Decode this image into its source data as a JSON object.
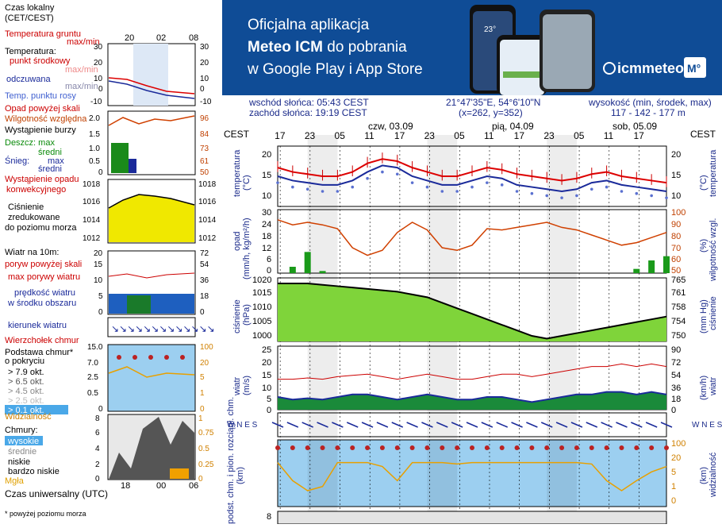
{
  "banner": {
    "line1": "Oficjalna aplikacja",
    "line2a": "Meteo ICM",
    "line2b": " do pobrania",
    "line3": "w Google Play i App Store",
    "logo": "icmmeteo",
    "logo_badge": "M°",
    "phone_time": "23°"
  },
  "meta": {
    "sunrise": "wschód słońca: 05:43 CEST",
    "sunset": "zachód słońca: 19:19 CEST",
    "coords": "21°47'35\"E, 54°6'10\"N",
    "grid": "(x=262,  y=352)",
    "height_label": "wysokość (min, środek, max)",
    "height_values": "117 - 142 - 177 m"
  },
  "legend": {
    "tz_local": "Czas lokalny",
    "tz_local2": "(CET/CEST)",
    "local_ticks": [
      "20",
      "02",
      "08"
    ],
    "ground_temp": "Temperatura gruntu",
    "ground_temp2": "max/min",
    "temperature": "Temperatura:",
    "mid_point": "punkt środkowy",
    "maxmin1": "max/min",
    "felt": "odczuwana",
    "maxmin2": "max/min",
    "dew": "Temp. punktu rosy",
    "precip_above": "Opad powyżej skali",
    "humidity": "Wilgotność względna",
    "storm": "Wystąpienie burzy",
    "rain": "Deszcz: max",
    "rain_avg": "średni",
    "snow": "Śnieg:",
    "snow_max": "max",
    "snow_avg": "średni",
    "conv": "Wystąpienie opadu",
    "conv2": "konwekcyjnego",
    "pressure": "Ciśnienie",
    "pressure2": "zredukowane",
    "pressure3": "do poziomu morza",
    "wind_title": "Wiatr na 10m:",
    "gust_above": "poryw powyżej skali",
    "gust_max": "max porywy wiatru",
    "wind_speed": "prędkość wiatru",
    "wind_area": "w środku obszaru",
    "wind_dir": "kierunek wiatru",
    "cloud_top": "Wierzchołek chmur",
    "cloud_base": "Podstawa chmur*",
    "cloud_base2": "o pokryciu",
    "okt79": "> 7.9 okt.",
    "okt65": "> 6.5 okt.",
    "okt45": "> 4.5 okt.",
    "okt25": "> 2.5 okt.",
    "okt01": "> 0.1 okt.",
    "visibility": "Widzialność",
    "clouds": "Chmury:",
    "high": "wysokie",
    "mid": "średnie",
    "low": "niskie",
    "very_low": "bardzo niskie",
    "fog": "Mgła",
    "utc": "Czas uniwersalny (UTC)",
    "utc_ticks": [
      "18",
      "00",
      "06"
    ],
    "footnote": "* powyżej poziomu morza",
    "temp_ticks_l": [
      "30",
      "20",
      "10",
      "0",
      "-10"
    ],
    "temp_ticks_r": [
      "30",
      "20",
      "10",
      "0",
      "-10"
    ],
    "prec_ticks_l": [
      "2.0",
      "1.5",
      "1.0",
      "0.5",
      "0"
    ],
    "prec_ticks_r": [
      "96",
      "84",
      "73",
      "61",
      "50"
    ],
    "pres_ticks_l": [
      "1018",
      "1016",
      "1014",
      "1012"
    ],
    "pres_ticks_r": [
      "1018",
      "1016",
      "1014",
      "1012"
    ],
    "wind_ticks_l": [
      "20",
      "15",
      "10",
      "5",
      "0"
    ],
    "wind_ticks_r": [
      "72",
      "54",
      "36",
      "18",
      "0"
    ],
    "cb_ticks_l": [
      "15.0",
      "7.0",
      "2.5",
      "0.5",
      "0"
    ],
    "cb_ticks_r": [
      "100",
      "20",
      "5",
      "1",
      "0"
    ],
    "cl_ticks_l": [
      "8",
      "6",
      "4",
      "2",
      "0"
    ],
    "cl_ticks_r": [
      "1",
      "0.75",
      "0.5",
      "0.25",
      "0"
    ]
  },
  "main": {
    "tz": "CEST",
    "hour_labels": [
      "17",
      "23",
      "05",
      "11",
      "17",
      "23",
      "05",
      "11",
      "17",
      "23",
      "05",
      "11",
      "17"
    ],
    "days": [
      "czw, 03.09",
      "pią, 04.09",
      "sob, 05.09"
    ],
    "temp_label_l": "temperatura",
    "temp_unit_l": "(°C)",
    "temp_label_r": "temperatura",
    "temp_unit_r": "(°C)",
    "temp_ticks": [
      "20",
      "15",
      "10"
    ],
    "prec_label_l": "opad",
    "prec_unit_l": "(mm/h, kg/m²/h)",
    "prec_label_r": "wilgotność wzgl.",
    "prec_unit_r": "(%)",
    "prec_ticks_l": [
      "30",
      "24",
      "18",
      "12",
      "6",
      "0"
    ],
    "prec_ticks_r": [
      "100",
      "90",
      "80",
      "70",
      "60",
      "50"
    ],
    "pres_label_l": "ciśnienie",
    "pres_unit_l": "(hPa)",
    "pres_label_r": "ciśnienie",
    "pres_unit_r": "(mm Hg)",
    "pres_ticks_l": [
      "1020",
      "1015",
      "1010",
      "1005",
      "1000"
    ],
    "pres_ticks_r": [
      "765",
      "761",
      "758",
      "754",
      "750"
    ],
    "wind_label_l": "wiatr",
    "wind_unit_l": "(m/s)",
    "wind_label_r": "wiatr",
    "wind_unit_r": "(km/h)",
    "wind_ticks_l": [
      "25",
      "20",
      "15",
      "10",
      "5",
      "0"
    ],
    "wind_ticks_r": [
      "90",
      "72",
      "54",
      "36",
      "18",
      "0"
    ],
    "dir_compass": "W N E S",
    "cb_label_l": "podst. chm. i pion. rozciągł. chm.",
    "cb_unit_l": "(km)",
    "cb_label_r": "widzialność",
    "cb_unit_r": "(km)",
    "cb_ticks_l": [
      "15.0",
      "7.0",
      "2.5",
      "0.5",
      "0"
    ],
    "cb_ticks_r": [
      "100",
      "20",
      "5",
      "1",
      "0"
    ],
    "cl_tick": "8"
  },
  "chart_data": {
    "type": "line",
    "hours_from_start": [
      0,
      3,
      6,
      9,
      12,
      15,
      18,
      21,
      24,
      27,
      30,
      33,
      36,
      39,
      42,
      45,
      48,
      51,
      54,
      57,
      60,
      63,
      66,
      69,
      72,
      75,
      78
    ],
    "series": [
      {
        "name": "temperatura",
        "values": [
          17,
          16,
          15.5,
          15,
          15,
          16,
          18,
          19,
          18.5,
          17,
          16,
          15,
          15,
          16,
          17,
          16.5,
          15.5,
          15,
          14.5,
          14,
          14.5,
          15.5,
          16,
          15,
          14.5,
          14,
          13.5
        ]
      },
      {
        "name": "odczuwana",
        "values": [
          15,
          14,
          13.5,
          13,
          13,
          14,
          16,
          17.5,
          17,
          15,
          14,
          13,
          13,
          14,
          15,
          14.5,
          13,
          12.5,
          12,
          11.5,
          12,
          13.5,
          14,
          13,
          12.5,
          12,
          11.5
        ]
      },
      {
        "name": "wilgotność",
        "values": [
          92,
          88,
          90,
          88,
          85,
          70,
          64,
          68,
          82,
          90,
          84,
          70,
          68,
          72,
          85,
          84,
          86,
          88,
          90,
          86,
          84,
          80,
          76,
          72,
          74,
          78,
          82
        ]
      },
      {
        "name": "ciśnienie",
        "values": [
          1019,
          1019,
          1019,
          1018.5,
          1018,
          1017.5,
          1017,
          1016.5,
          1016,
          1015,
          1014,
          1012,
          1010,
          1008,
          1006,
          1004,
          1002,
          1000,
          999,
          1000,
          1001,
          1002,
          1003,
          1004,
          1005,
          1006,
          1007
        ]
      },
      {
        "name": "wiatr",
        "values": [
          5,
          4,
          4.5,
          4,
          5,
          6,
          6,
          5,
          4,
          5,
          6,
          5,
          4,
          4,
          5,
          5,
          4,
          3,
          4,
          5,
          6,
          6,
          7,
          7,
          6,
          7,
          6
        ]
      },
      {
        "name": "porywy",
        "values": [
          12,
          12,
          12.5,
          12,
          13,
          13.5,
          14,
          13,
          12,
          13,
          14,
          13,
          12,
          12,
          13,
          14,
          14,
          13,
          14,
          15,
          16,
          17,
          17,
          18,
          17,
          18,
          17
        ]
      },
      {
        "name": "widzialność",
        "values": [
          20,
          5,
          2,
          3,
          20,
          20,
          20,
          15,
          5,
          20,
          20,
          20,
          18,
          20,
          20,
          20,
          20,
          20,
          20,
          20,
          20,
          18,
          5,
          2,
          5,
          10,
          15
        ]
      }
    ],
    "precip": [
      0,
      3,
      10,
      1,
      0,
      0,
      0,
      0,
      0,
      0,
      0,
      0,
      0,
      0,
      0,
      0,
      0,
      0,
      0,
      0,
      0,
      0,
      0,
      0,
      2,
      6,
      8
    ],
    "ylim_temp": [
      8,
      22
    ],
    "ylim_pressure": [
      998,
      1021
    ],
    "ylim_wind": [
      0,
      25
    ]
  }
}
